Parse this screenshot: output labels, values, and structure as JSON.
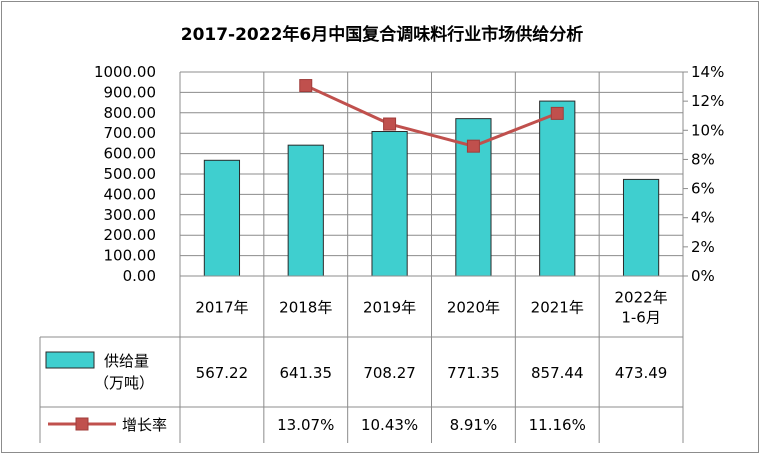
{
  "chart_data": {
    "type": "bar",
    "title": "2017-2022年6月中国复合调味料行业市场供给分析",
    "categories": [
      "2017年",
      "2018年",
      "2019年",
      "2020年",
      "2021年",
      "2022年\n1-6月"
    ],
    "series": [
      {
        "name": "供给量（万吨）",
        "type": "bar",
        "axis": "left",
        "color": "#3fcfcf",
        "values": [
          567.22,
          641.35,
          708.27,
          771.35,
          857.44,
          473.49
        ],
        "value_labels": [
          "567.22",
          "641.35",
          "708.27",
          "771.35",
          "857.44",
          "473.49"
        ]
      },
      {
        "name": "增长率",
        "type": "line",
        "axis": "right",
        "color": "#c0504d",
        "values": [
          null,
          13.07,
          10.43,
          8.91,
          11.16,
          null
        ],
        "value_labels": [
          "",
          "13.07%",
          "10.43%",
          "8.91%",
          "11.16%",
          ""
        ]
      }
    ],
    "y_left": {
      "range": [
        0,
        1000
      ],
      "ticks": [
        "0.00",
        "100.00",
        "200.00",
        "300.00",
        "400.00",
        "500.00",
        "600.00",
        "700.00",
        "800.00",
        "900.00",
        "1000.00"
      ]
    },
    "y_right": {
      "range": [
        0,
        14
      ],
      "ticks": [
        "0%",
        "2%",
        "4%",
        "6%",
        "8%",
        "10%",
        "12%",
        "14%"
      ]
    },
    "grid": true,
    "legend": "data-table"
  }
}
